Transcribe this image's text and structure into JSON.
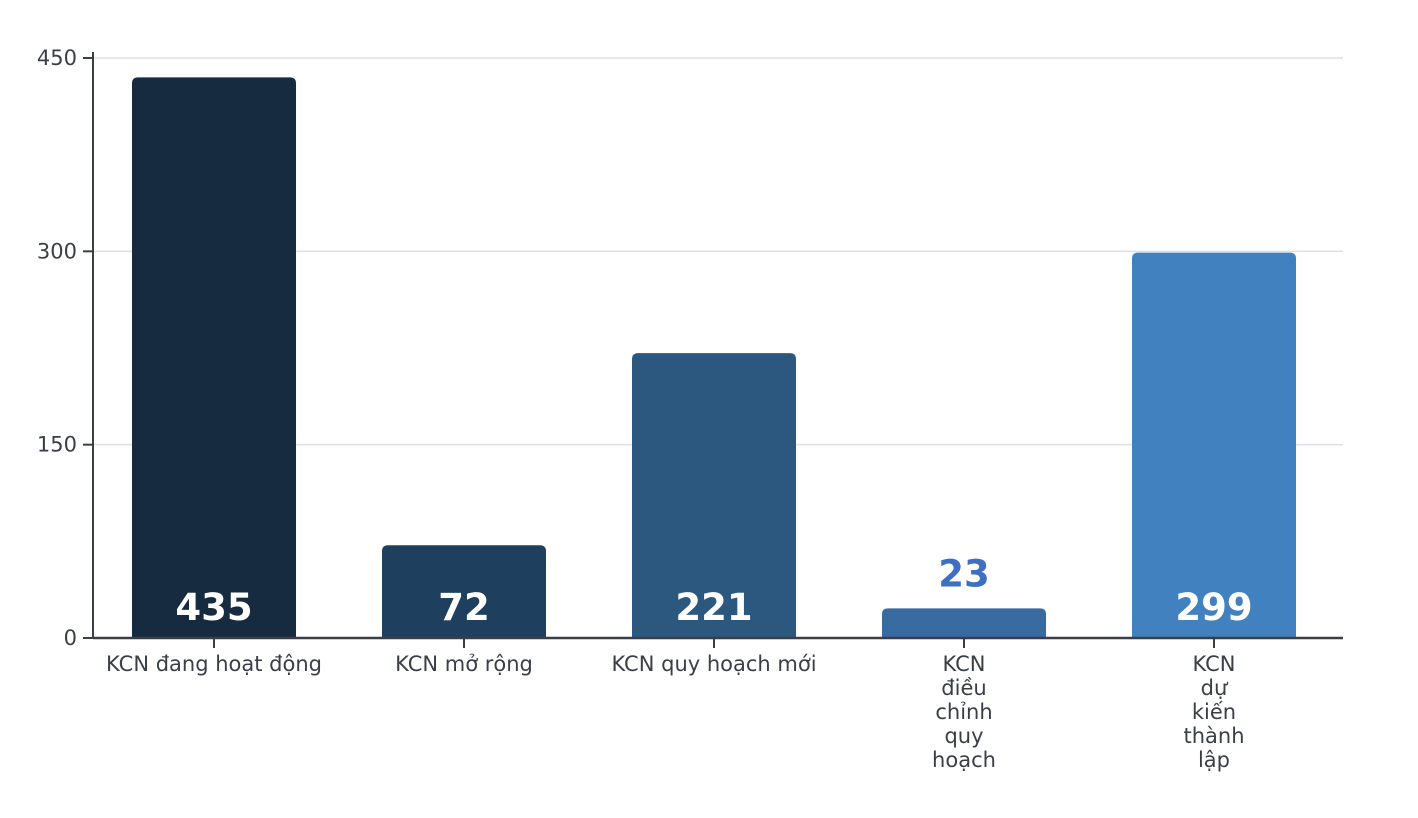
{
  "chart_data": {
    "type": "bar",
    "title": "",
    "xlabel": "",
    "ylabel": "",
    "ylim": [
      0,
      450
    ],
    "yticks": [
      0,
      150,
      300,
      450
    ],
    "grid": true,
    "categories": [
      [
        "KCN đang hoạt động"
      ],
      [
        "KCN mở rộng"
      ],
      [
        "KCN quy hoạch mới"
      ],
      [
        "KCN",
        "điều",
        "chỉnh",
        "quy",
        "hoạch"
      ],
      [
        "KCN",
        "dự",
        "kiến",
        "thành",
        "lập"
      ]
    ],
    "values": [
      435,
      72,
      221,
      23,
      299
    ],
    "colors": [
      "#172b40",
      "#1f3f5e",
      "#2c5880",
      "#386ba0",
      "#4281bf"
    ],
    "label_position": [
      "inside",
      "inside",
      "inside",
      "outside",
      "inside"
    ],
    "label_colors": [
      "#ffffff",
      "#ffffff",
      "#ffffff",
      "#3f6fc0",
      "#ffffff"
    ]
  }
}
